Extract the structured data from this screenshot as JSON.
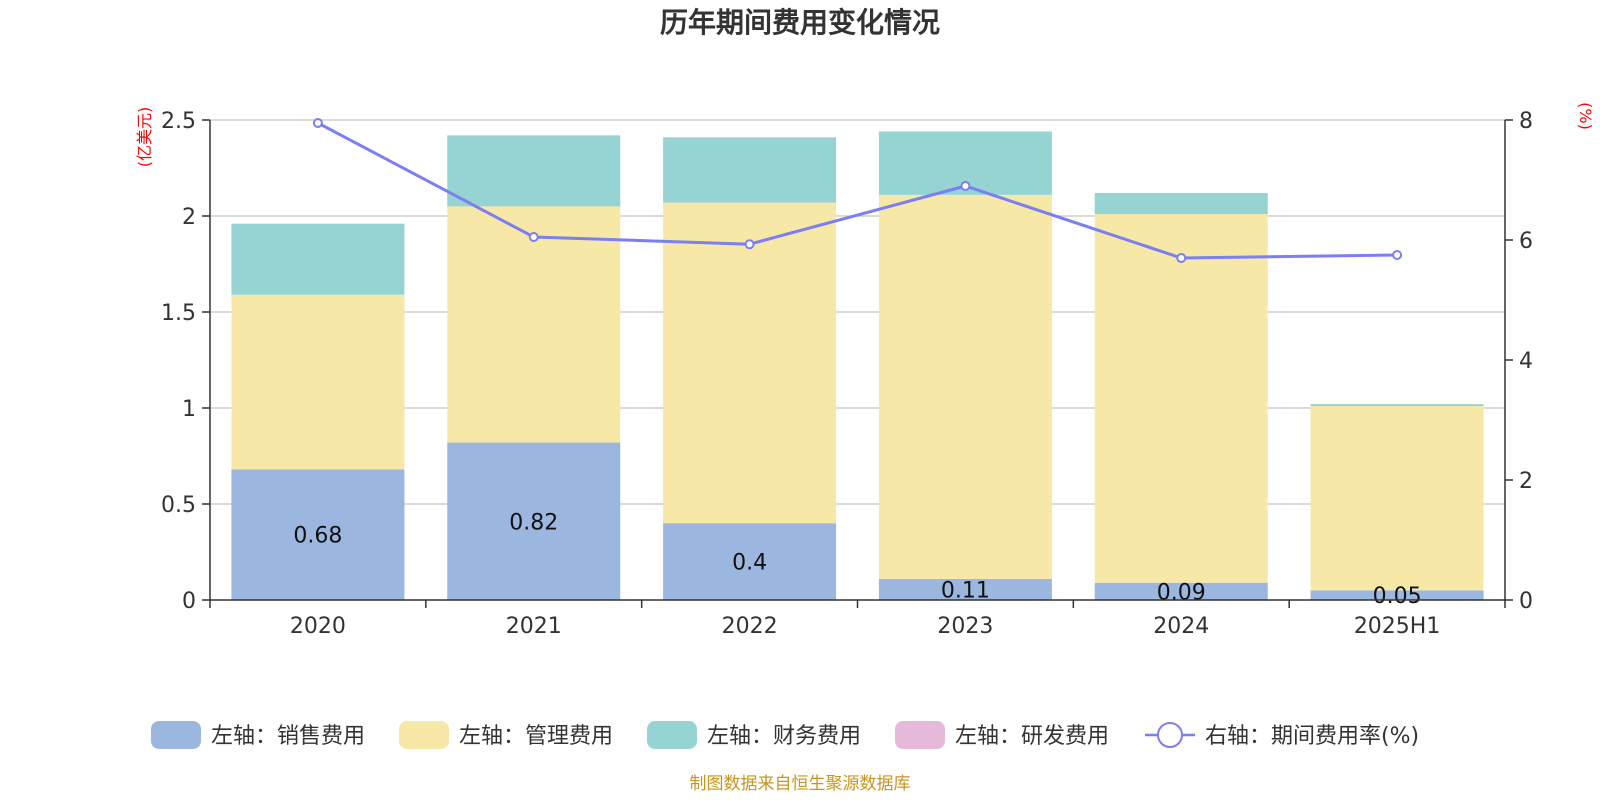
{
  "chart_data": {
    "type": "bar",
    "title": "历年期间费用变化情况",
    "categories": [
      "2020",
      "2021",
      "2022",
      "2023",
      "2024",
      "2025H1"
    ],
    "left_axis": {
      "unit": "(亿美元)",
      "ylim": [
        0,
        2.5
      ],
      "ticks": [
        "0",
        "0.5",
        "1",
        "1.5",
        "2",
        "2.5"
      ]
    },
    "right_axis": {
      "unit": "(%)",
      "ylim": [
        0,
        8
      ],
      "ticks": [
        "0",
        "2",
        "4",
        "6",
        "8"
      ]
    },
    "stacked": true,
    "series": [
      {
        "name": "左轴：销售费用",
        "color": "#9bb7e0",
        "axis": "left",
        "values": [
          0.68,
          0.82,
          0.4,
          0.11,
          0.09,
          0.05
        ],
        "labels": [
          "0.68",
          "0.82",
          "0.4",
          "0.11",
          "0.09",
          "0.05"
        ]
      },
      {
        "name": "左轴：管理费用",
        "color": "#f7e8a8",
        "axis": "left",
        "values": [
          0.91,
          1.23,
          1.67,
          2.0,
          1.92,
          0.96
        ]
      },
      {
        "name": "左轴：财务费用",
        "color": "#96d4d4",
        "axis": "left",
        "values": [
          0.37,
          0.37,
          0.34,
          0.33,
          0.11,
          0.01
        ]
      },
      {
        "name": "左轴：研发费用",
        "color": "#e6b8d9",
        "axis": "left",
        "values": [
          0,
          0,
          0,
          0,
          0,
          0
        ]
      },
      {
        "name": "右轴：期间费用率(%)",
        "color": "#7b7ff0",
        "axis": "right",
        "type": "line",
        "values": [
          7.95,
          6.05,
          5.93,
          6.9,
          5.7,
          5.75
        ]
      }
    ],
    "grid": true,
    "legend_position": "bottom"
  },
  "footer": {
    "source": "制图数据来自恒生聚源数据库"
  }
}
